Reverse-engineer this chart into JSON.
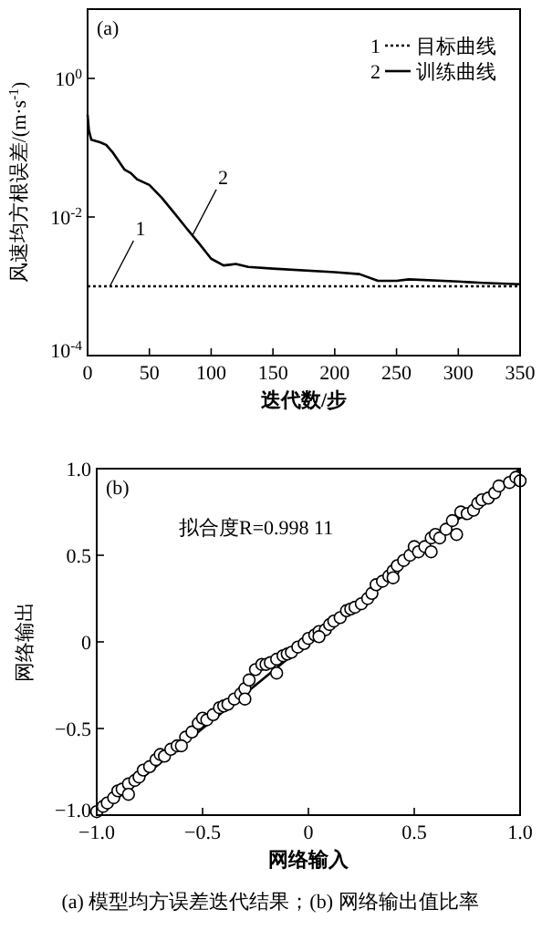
{
  "chart_data": [
    {
      "type": "line",
      "title": "(a)",
      "xlabel": "迭代数/步",
      "ylabel": "风速均方根误差/(m·s$^{-1}$)",
      "log": "y",
      "xlim": [
        0,
        350
      ],
      "ylim": [
        0.0001,
        10
      ],
      "xticks": [
        0,
        50,
        100,
        150,
        200,
        250,
        300,
        350
      ],
      "yticks": [
        {
          "value": 0.0001,
          "label": "10$^{-4}$"
        },
        {
          "value": 0.01,
          "label": "10$^{-2}$"
        },
        {
          "value": 1,
          "label": "10$^{0}$"
        }
      ],
      "legend": "top right",
      "series": [
        {
          "name": "目标曲线",
          "color": "#000000",
          "line_style": "dotted",
          "x": [
            0,
            350
          ],
          "values": [
            0.001,
            0.001
          ]
        },
        {
          "name": "训练曲线",
          "color": "#000000",
          "line_style": "solid",
          "x": [
            0,
            1,
            3,
            10,
            15,
            20,
            30,
            35,
            40,
            50,
            60,
            70,
            80,
            90,
            100,
            110,
            120,
            130,
            150,
            200,
            220,
            235,
            250,
            260,
            300,
            320,
            350
          ],
          "values": [
            0.3,
            0.18,
            0.13,
            0.12,
            0.11,
            0.087,
            0.048,
            0.043,
            0.035,
            0.029,
            0.019,
            0.0115,
            0.0069,
            0.0042,
            0.0025,
            0.002,
            0.0021,
            0.0019,
            0.0018,
            0.0016,
            0.0015,
            0.0012,
            0.0012,
            0.00126,
            0.00117,
            0.00112,
            0.00107
          ]
        }
      ],
      "annotations": [
        {
          "text": "1",
          "x": 18,
          "y": 0.001
        },
        {
          "text": "2",
          "x": 85,
          "y": 0.0055
        }
      ]
    },
    {
      "type": "scatter",
      "title": "(b)",
      "xlabel": "网络输入",
      "ylabel": "网络输出",
      "xlim": [
        -1,
        1
      ],
      "ylim": [
        -1,
        1
      ],
      "xticks": [
        {
          "value": -1,
          "label": "−1.0"
        },
        {
          "value": -0.5,
          "label": "−0.5"
        },
        {
          "value": 0,
          "label": "0"
        },
        {
          "value": 0.5,
          "label": "0.5"
        },
        {
          "value": 1,
          "label": "1.0"
        }
      ],
      "yticks": [
        {
          "value": -1,
          "label": "−1.0"
        },
        {
          "value": -0.5,
          "label": "−0.5"
        },
        {
          "value": 0,
          "label": "0"
        },
        {
          "value": 0.5,
          "label": "0.5"
        },
        {
          "value": 1,
          "label": "1.0"
        }
      ],
      "marker": "circle",
      "series": [
        {
          "type": "line",
          "marker": "none",
          "color": "#000000",
          "x": [
            -1,
            1
          ],
          "values": [
            -1,
            1
          ]
        },
        {
          "color": "#000000",
          "x": [
            -1,
            -0.97,
            -0.95,
            -0.92,
            -0.9,
            -0.88,
            -0.85,
            -0.82,
            -0.8,
            -0.78,
            -0.75,
            -0.72,
            -0.7,
            -0.68,
            -0.65,
            -0.62,
            -0.58,
            -0.55,
            -0.52,
            -0.5,
            -0.48,
            -0.45,
            -0.42,
            -0.4,
            -0.38,
            -0.35,
            -0.32,
            -0.3,
            -0.28,
            -0.25,
            -0.22,
            -0.2,
            -0.18,
            -0.15,
            -0.12,
            -0.1,
            -0.08,
            -0.05,
            -0.02,
            0,
            0.03,
            0.05,
            0.08,
            0.1,
            0.12,
            0.15,
            0.18,
            0.2,
            0.22,
            0.25,
            0.28,
            0.3,
            0.32,
            0.35,
            0.38,
            0.4,
            0.42,
            0.45,
            0.48,
            0.5,
            0.52,
            0.55,
            0.58,
            0.6,
            0.62,
            0.65,
            0.68,
            0.7,
            0.72,
            0.75,
            0.78,
            0.8,
            0.82,
            0.85,
            0.88,
            0.9,
            0.95,
            0.98,
            1,
            -0.6,
            -0.3,
            0.05,
            0.4,
            -0.85,
            0.58,
            -0.15
          ],
          "values": [
            -0.98,
            -0.95,
            -0.93,
            -0.9,
            -0.86,
            -0.85,
            -0.82,
            -0.8,
            -0.78,
            -0.74,
            -0.72,
            -0.68,
            -0.65,
            -0.66,
            -0.62,
            -0.6,
            -0.55,
            -0.52,
            -0.47,
            -0.44,
            -0.45,
            -0.42,
            -0.38,
            -0.37,
            -0.36,
            -0.33,
            -0.3,
            -0.27,
            -0.22,
            -0.16,
            -0.13,
            -0.13,
            -0.12,
            -0.1,
            -0.08,
            -0.07,
            -0.06,
            -0.03,
            -0.01,
            0.02,
            0.04,
            0.06,
            0.07,
            0.1,
            0.12,
            0.14,
            0.18,
            0.19,
            0.2,
            0.22,
            0.25,
            0.28,
            0.33,
            0.35,
            0.38,
            0.41,
            0.44,
            0.47,
            0.5,
            0.55,
            0.52,
            0.55,
            0.6,
            0.62,
            0.6,
            0.65,
            0.7,
            0.62,
            0.75,
            0.74,
            0.76,
            0.8,
            0.82,
            0.83,
            0.86,
            0.9,
            0.92,
            0.95,
            0.93,
            -0.6,
            -0.33,
            0.03,
            0.37,
            -0.88,
            0.52,
            -0.18
          ]
        }
      ],
      "annotations": [
        "拟合度R=0.998 11",
        "(a) 模型均方误差迭代结果；(b) 网络输出值比率"
      ]
    }
  ]
}
